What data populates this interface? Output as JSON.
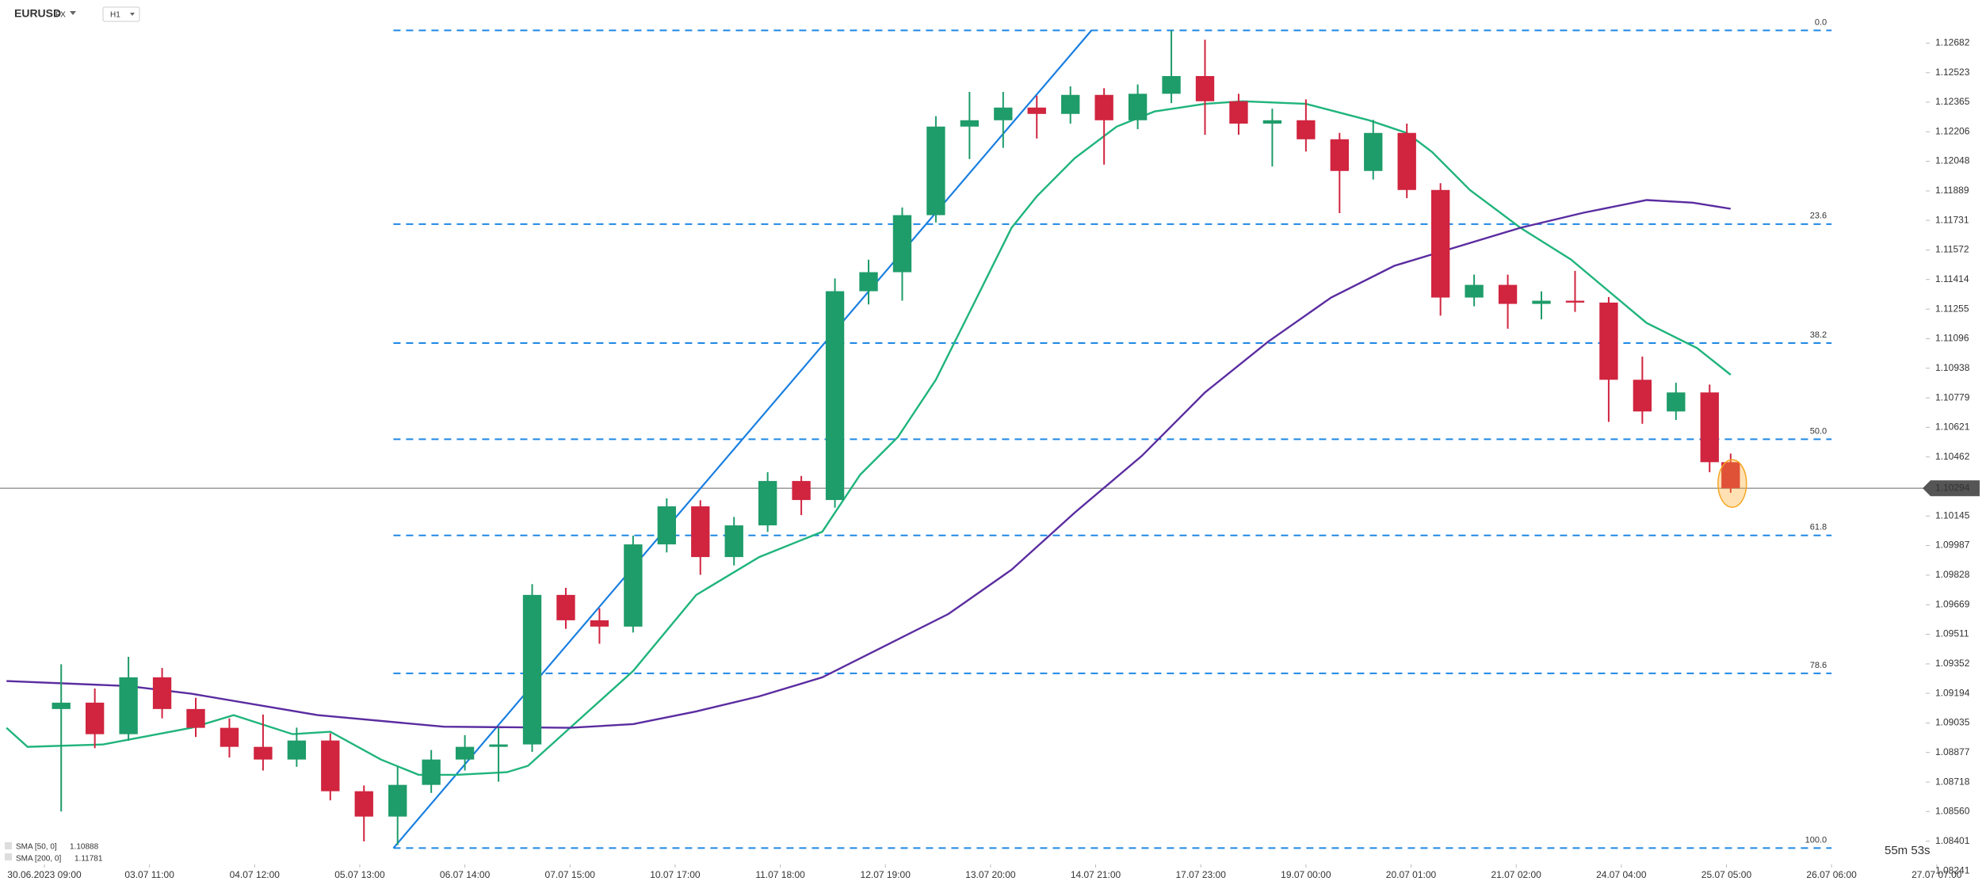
{
  "chart_data": {
    "type": "candlestick",
    "symbol": "EURUSD",
    "market": "FX",
    "interval": "H1",
    "x": [
      4,
      12,
      20,
      28,
      36,
      44,
      52,
      60,
      68,
      76,
      84,
      92,
      100,
      108,
      116,
      124,
      132,
      140,
      148,
      156,
      164,
      172,
      180,
      188,
      196,
      204,
      212,
      220,
      228,
      236,
      244,
      252,
      260,
      268,
      276,
      284,
      292,
      300,
      308,
      316,
      324,
      332,
      340,
      348,
      356,
      364,
      372,
      380,
      388,
      396,
      401
    ],
    "open": [
      1.0911,
      1.09144,
      1.08975,
      1.0928,
      1.0911,
      1.09009,
      1.08907,
      1.08839,
      1.08941,
      1.08669,
      1.08533,
      1.08703,
      1.08839,
      1.08907,
      1.0892,
      1.09722,
      1.09586,
      1.09552,
      1.09993,
      1.10197,
      1.09925,
      1.10095,
      1.10333,
      1.10231,
      1.11351,
      1.11453,
      1.11759,
      1.12234,
      1.12268,
      1.12336,
      1.12302,
      1.12404,
      1.12268,
      1.1241,
      1.12505,
      1.1237,
      1.1225,
      1.12268,
      1.12166,
      1.11996,
      1.122,
      1.11894,
      1.11317,
      1.11385,
      1.11283,
      1.113,
      1.1129,
      1.10876,
      1.10706,
      1.10808,
      1.10434
    ],
    "high": [
      1.0935,
      1.0922,
      1.0939,
      1.0933,
      1.0917,
      1.0906,
      1.0908,
      1.0901,
      1.0898,
      1.087,
      1.088,
      1.0889,
      1.0897,
      1.0901,
      1.0978,
      1.0976,
      1.0965,
      1.1004,
      1.1024,
      1.1023,
      1.1014,
      1.1038,
      1.1036,
      1.1142,
      1.1152,
      1.118,
      1.1229,
      1.1242,
      1.1242,
      1.124,
      1.1245,
      1.1244,
      1.1246,
      1.1275,
      1.127,
      1.1241,
      1.1233,
      1.1238,
      1.122,
      1.1227,
      1.1225,
      1.1193,
      1.1144,
      1.1144,
      1.1135,
      1.1146,
      1.1132,
      1.11,
      1.1086,
      1.1085,
      1.1048
    ],
    "low": [
      1.0856,
      1.089,
      1.0894,
      1.0906,
      1.0896,
      1.0885,
      1.0878,
      1.088,
      1.0862,
      1.084,
      1.0838,
      1.0866,
      1.0878,
      1.0872,
      1.0888,
      1.0954,
      1.0946,
      1.0952,
      1.0995,
      1.0983,
      1.0988,
      1.1006,
      1.1015,
      1.1019,
      1.1128,
      1.113,
      1.1172,
      1.1206,
      1.1212,
      1.1217,
      1.1225,
      1.1203,
      1.1222,
      1.1236,
      1.1219,
      1.1219,
      1.1202,
      1.121,
      1.1177,
      1.1195,
      1.1185,
      1.1122,
      1.1127,
      1.1115,
      1.112,
      1.1124,
      1.1065,
      1.1064,
      1.1066,
      1.1038,
      1.1027
    ],
    "close": [
      1.09144,
      1.08975,
      1.0928,
      1.0911,
      1.09009,
      1.08907,
      1.08839,
      1.08941,
      1.08669,
      1.08533,
      1.08703,
      1.08839,
      1.08907,
      1.0892,
      1.09722,
      1.09586,
      1.09552,
      1.09993,
      1.10197,
      1.09925,
      1.10095,
      1.10333,
      1.10231,
      1.11351,
      1.11453,
      1.11759,
      1.12234,
      1.12268,
      1.12336,
      1.12302,
      1.12404,
      1.12268,
      1.1241,
      1.12505,
      1.1237,
      1.1225,
      1.12268,
      1.12166,
      1.11996,
      1.122,
      1.11894,
      1.11317,
      1.11385,
      1.11283,
      1.113,
      1.1129,
      1.10876,
      1.10706,
      1.10808,
      1.10434,
      1.10294
    ],
    "colors": {
      "up": "#1e9c6a",
      "down": "#d0243f"
    },
    "overlays": [
      {
        "name": "SMA [50, 0]",
        "last": 1.10888,
        "color": "#1fb47c",
        "x": [
          -9,
          -4,
          14,
          35,
          45,
          59,
          68,
          80,
          89,
          98,
          110,
          115,
          125,
          140,
          155,
          170,
          185,
          194,
          203,
          212,
          221,
          230,
          236,
          245,
          255,
          264,
          276,
          285,
          300,
          315,
          324,
          330,
          339,
          351,
          363,
          372,
          381,
          393,
          401
        ],
        "values": [
          1.09009,
          1.08907,
          1.0892,
          1.09009,
          1.09077,
          1.08975,
          1.08988,
          1.08839,
          1.08757,
          1.08757,
          1.08771,
          1.08805,
          1.09009,
          1.09314,
          1.09722,
          1.09925,
          1.10061,
          1.10367,
          1.1057,
          1.10876,
          1.11283,
          1.11691,
          1.1186,
          1.12064,
          1.12234,
          1.12315,
          1.12356,
          1.1237,
          1.12356,
          1.12268,
          1.122,
          1.12098,
          1.11894,
          1.11691,
          1.11521,
          1.11351,
          1.11181,
          1.11046,
          1.10903
        ]
      },
      {
        "name": "SMA [200, 0]",
        "last": 1.11781,
        "color": "#5a2ca0",
        "x": [
          -9,
          20,
          35,
          65,
          95,
          125,
          140,
          155,
          170,
          185,
          200,
          215,
          230,
          245,
          261,
          276,
          291,
          306,
          321,
          336,
          351,
          366,
          381,
          392,
          401
        ],
        "values": [
          1.0926,
          1.09233,
          1.09192,
          1.09077,
          1.09015,
          1.09009,
          1.09029,
          1.09097,
          1.09178,
          1.0928,
          1.0945,
          1.0962,
          1.09857,
          1.10163,
          1.10468,
          1.10808,
          1.1108,
          1.11317,
          1.11487,
          1.11589,
          1.11691,
          1.11772,
          1.1184,
          1.11826,
          1.11793
        ]
      }
    ],
    "fibonacci": {
      "color": "#1e88e5",
      "x_start": 83,
      "x_end": 425,
      "levels": [
        {
          "label": "0.0",
          "value": 1.1275
        },
        {
          "label": "23.6",
          "value": 1.11711
        },
        {
          "label": "38.2",
          "value": 1.11073
        },
        {
          "label": "50.0",
          "value": 1.10557
        },
        {
          "label": "61.8",
          "value": 1.10041
        },
        {
          "label": "78.6",
          "value": 1.09301
        },
        {
          "label": "100.0",
          "value": 1.08364
        }
      ]
    },
    "trendline": {
      "color": "#1a7fe0",
      "x": [
        83,
        249
      ],
      "values": [
        1.08364,
        1.1275
      ]
    },
    "current_price": 1.10294,
    "timer": "55m 53s",
    "xlim": [
      -10.55,
      447.4
    ],
    "ylim": [
      1.08166,
      1.12913
    ],
    "xticks": [
      {
        "value": 0,
        "label": "30.06.2023 09:00"
      },
      {
        "value": 25,
        "label": "03.07 11:00"
      },
      {
        "value": 50,
        "label": "04.07 12:00"
      },
      {
        "value": 75,
        "label": "05.07 13:00"
      },
      {
        "value": 100,
        "label": "06.07 14:00"
      },
      {
        "value": 125,
        "label": "07.07 15:00"
      },
      {
        "value": 150,
        "label": "10.07 17:00"
      },
      {
        "value": 175,
        "label": "11.07 18:00"
      },
      {
        "value": 200,
        "label": "12.07 19:00"
      },
      {
        "value": 225,
        "label": "13.07 20:00"
      },
      {
        "value": 250,
        "label": "14.07 21:00"
      },
      {
        "value": 275,
        "label": "17.07 23:00"
      },
      {
        "value": 300,
        "label": "19.07 00:00"
      },
      {
        "value": 325,
        "label": "20.07 01:00"
      },
      {
        "value": 350,
        "label": "21.07 02:00"
      },
      {
        "value": 375,
        "label": "24.07 04:00"
      },
      {
        "value": 400,
        "label": "25.07 05:00"
      },
      {
        "value": 425,
        "label": "26.07 06:00"
      },
      {
        "value": 450,
        "label": "27.07 07:00"
      }
    ],
    "yticks": [
      1.12682,
      1.12523,
      1.12365,
      1.12206,
      1.12048,
      1.11889,
      1.11731,
      1.11572,
      1.11414,
      1.11255,
      1.11096,
      1.10938,
      1.10779,
      1.10621,
      1.10462,
      1.10145,
      1.09987,
      1.09828,
      1.09669,
      1.09511,
      1.09352,
      1.09194,
      1.09035,
      1.08877,
      1.08718,
      {
        "value": 1.0856,
        "label": "1.08560"
      },
      1.08401,
      1.08241
    ]
  }
}
